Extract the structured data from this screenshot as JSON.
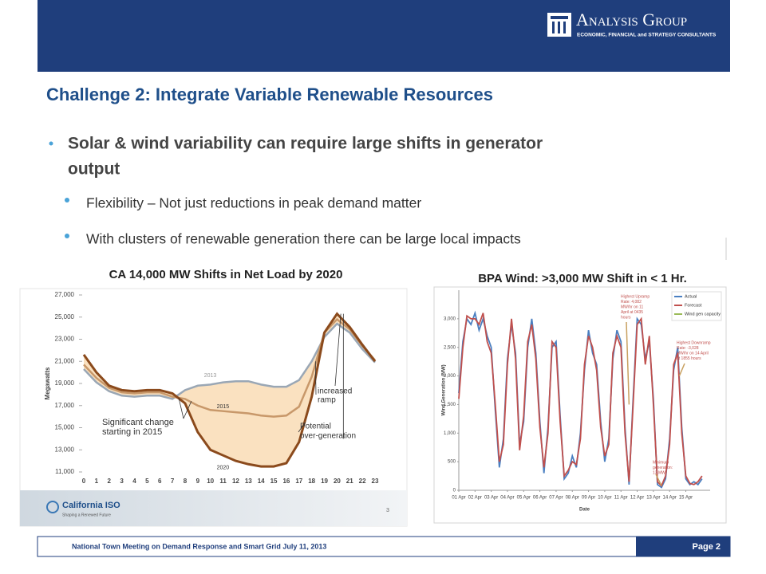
{
  "header": {
    "brand": "Analysis Group",
    "tagline": "ECONOMIC, FINANCIAL and STRATEGY CONSULTANTS"
  },
  "title": "Challenge 2: Integrate Variable Renewable Resources",
  "bullets": [
    {
      "text": "Solar & wind variability can require large shifts in generator",
      "text_cont": "output",
      "sub": [
        "Flexibility – Not just reductions in peak demand matter",
        "With clusters of renewable generation there can be large local impacts"
      ]
    }
  ],
  "charts": [
    {
      "caption": "CA 14,000 MW Shifts in Net Load by 2020",
      "source_logo": "California ISO",
      "source_tagline": "Shaping a Renewed Future",
      "slide_number": 3,
      "chart_data": {
        "type": "line",
        "ylabel": "Megawatts",
        "categories": [
          "0",
          "1",
          "2",
          "3",
          "4",
          "5",
          "6",
          "7",
          "8",
          "9",
          "10",
          "11",
          "12",
          "13",
          "14",
          "15",
          "16",
          "17",
          "18",
          "19",
          "20",
          "21",
          "22",
          "23"
        ],
        "ylim": [
          11000,
          27000
        ],
        "yticks": [
          {
            "value": 11000,
            "label": "11,000"
          },
          {
            "value": 13000,
            "label": "13,000"
          },
          {
            "value": 15000,
            "label": "15,000"
          },
          {
            "value": 17000,
            "label": "17,000"
          },
          {
            "value": 19000,
            "label": "19,000"
          },
          {
            "value": 21000,
            "label": "21,000"
          },
          {
            "value": 23000,
            "label": "23,000"
          },
          {
            "value": 25000,
            "label": "25,000"
          },
          {
            "value": 27000,
            "label": "27,000"
          }
        ],
        "series": [
          {
            "name": "2013",
            "color": "#9aa7b5",
            "values": [
              20300,
              19100,
              18300,
              17900,
              17800,
              17900,
              17900,
              17600,
              18400,
              18800,
              18900,
              19100,
              19200,
              19200,
              18900,
              18700,
              18700,
              19300,
              21000,
              23200,
              24400,
              23600,
              22100,
              20900
            ]
          },
          {
            "name": "2015",
            "color": "#c8986a",
            "values": [
              20700,
              19500,
              18600,
              18200,
              18100,
              18200,
              18200,
              17800,
              17600,
              17000,
              16600,
              16500,
              16400,
              16300,
              16100,
              16000,
              16100,
              16900,
              19600,
              23600,
              24800,
              23900,
              22400,
              21100
            ]
          },
          {
            "name": "2020",
            "color": "#8b4a1c",
            "values": [
              21600,
              20000,
              18800,
              18400,
              18300,
              18400,
              18400,
              18100,
              17200,
              14600,
              13000,
              12500,
              12000,
              11700,
              11500,
              11500,
              11800,
              13700,
              17800,
              23600,
              25300,
              24100,
              22500,
              21000
            ]
          }
        ],
        "annotations": [
          [
            "increased",
            "ramp"
          ],
          [
            "Significant change",
            "starting in 2015"
          ],
          [
            "Potential",
            "over-generation"
          ]
        ]
      }
    },
    {
      "caption": "BPA Wind: >3,000 MW Shift in < 1 Hr.",
      "chart_data": {
        "type": "line",
        "ylabel": "Wind Generation (MW)",
        "xlabel": "Date",
        "x": [
          0,
          0.25,
          0.5,
          0.75,
          1,
          1.25,
          1.5,
          1.75,
          2,
          2.25,
          2.5,
          2.75,
          3,
          3.25,
          3.5,
          3.75,
          4,
          4.25,
          4.5,
          4.75,
          5,
          5.25,
          5.5,
          5.75,
          6,
          6.25,
          6.5,
          6.75,
          7,
          7.25,
          7.5,
          7.75,
          8,
          8.25,
          8.5,
          8.75,
          9,
          9.25,
          9.5,
          9.75,
          10,
          10.25,
          10.5,
          10.75,
          11,
          11.25,
          11.5,
          11.75,
          12,
          12.25,
          12.5,
          12.75,
          13,
          13.25,
          13.5,
          13.75,
          14,
          14.25,
          14.5,
          14.75,
          15
        ],
        "xlim": [
          0,
          15.5
        ],
        "xticks": [
          {
            "value": 0,
            "label": "01 Apr"
          },
          {
            "value": 1,
            "label": "02 Apr"
          },
          {
            "value": 2,
            "label": "03 Apr"
          },
          {
            "value": 3,
            "label": "04 Apr"
          },
          {
            "value": 4,
            "label": "05 Apr"
          },
          {
            "value": 5,
            "label": "06 Apr"
          },
          {
            "value": 6,
            "label": "07 Apr"
          },
          {
            "value": 7,
            "label": "08 Apr"
          },
          {
            "value": 8,
            "label": "09 Apr"
          },
          {
            "value": 9,
            "label": "10 Apr"
          },
          {
            "value": 10,
            "label": "11 Apr"
          },
          {
            "value": 11,
            "label": "12 Apr"
          },
          {
            "value": 12,
            "label": "13 Apr"
          },
          {
            "value": 13,
            "label": "14 Apr"
          },
          {
            "value": 14,
            "label": "15 Apr"
          }
        ],
        "ylim": [
          0,
          3500
        ],
        "yticks": [
          0,
          500,
          {
            "value": 1000,
            "label": "1,000"
          },
          {
            "value": 1500,
            "label": "1,500"
          },
          {
            "value": 2000,
            "label": "2,000"
          },
          {
            "value": 2500,
            "label": "2,500"
          },
          {
            "value": 3000,
            "label": "3,000"
          }
        ],
        "legend": [
          {
            "name": "Actual",
            "color": "#4a7fc1"
          },
          {
            "name": "Forecast",
            "color": "#c0504d"
          },
          {
            "name": "Wind gen capacity",
            "color": "#9bbb59"
          }
        ],
        "series": [
          {
            "name": "Actual",
            "color": "#4a7fc1",
            "values": [
              1700,
              2600,
              3000,
              2900,
              3100,
              2800,
              3000,
              2700,
              2500,
              1400,
              400,
              900,
              2300,
              2900,
              2400,
              800,
              1200,
              2500,
              3000,
              2400,
              1200,
              300,
              1100,
              2500,
              2600,
              1300,
              200,
              300,
              600,
              400,
              1000,
              2100,
              2800,
              2400,
              2200,
              1200,
              500,
              900,
              2300,
              2800,
              2600,
              1100,
              100,
              1600,
              3000,
              2900,
              2300,
              2600,
              1600,
              100,
              50,
              200,
              900,
              2100,
              2500,
              1100,
              200,
              100,
              150,
              100,
              200
            ]
          },
          {
            "name": "Forecast",
            "color": "#c0504d",
            "values": [
              1600,
              2500,
              3050,
              3000,
              3000,
              2900,
              3100,
              2600,
              2400,
              1500,
              500,
              800,
              2200,
              3000,
              2300,
              700,
              1300,
              2600,
              2900,
              2300,
              1100,
              400,
              1000,
              2600,
              2500,
              1200,
              250,
              350,
              500,
              450,
              900,
              2200,
              2700,
              2500,
              2100,
              1100,
              600,
              800,
              2400,
              2700,
              2500,
              1000,
              150,
              1500,
              2900,
              3000,
              2200,
              2700,
              1500,
              150,
              80,
              250,
              800,
              2200,
              2400,
              1000,
              250,
              120,
              100,
              150,
              250
            ]
          }
        ],
        "annotations": [
          [
            "Highest Upramp",
            "Rate: 4,082",
            "MW/hr on 11",
            "April at 0435",
            "hours"
          ],
          [
            "Highest Downramp",
            "Rate: -3,028",
            "MW/hr on 14 April",
            "at 1855 hours"
          ],
          [
            "Minimum",
            "generation:",
            "13 MW"
          ]
        ]
      }
    }
  ],
  "footer": {
    "meeting": "National Town Meeting on Demand Response and Smart Grid  July 11, 2013",
    "page": "Page 2"
  }
}
